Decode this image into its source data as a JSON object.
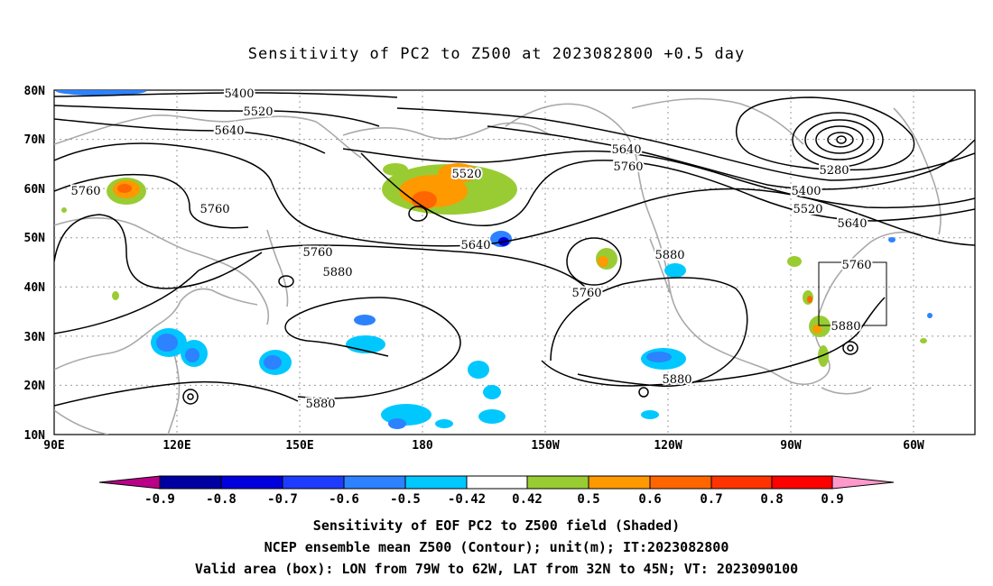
{
  "title": "Sensitivity of PC2 to Z500 at 2023082800 +0.5 day",
  "lat_labels": [
    "80N",
    "70N",
    "60N",
    "50N",
    "40N",
    "30N",
    "20N",
    "10N"
  ],
  "lon_labels": [
    "90E",
    "120E",
    "150E",
    "180",
    "150W",
    "120W",
    "90W",
    "60W"
  ],
  "contour_labels": [
    "5400",
    "5520",
    "5640",
    "5760",
    "5760",
    "5520",
    "5640",
    "5760",
    "5640",
    "5760",
    "5280",
    "5400",
    "5520",
    "5640",
    "5760",
    "5880",
    "5880",
    "5760",
    "5880",
    "5880",
    "5880"
  ],
  "colorbar": {
    "ticks": [
      "-0.9",
      "-0.8",
      "-0.7",
      "-0.6",
      "-0.5",
      "-0.42",
      "0.42",
      "0.5",
      "0.6",
      "0.7",
      "0.8",
      "0.9"
    ],
    "colors": [
      "#bb0088",
      "#0000a0",
      "#0000dc",
      "#1e3cff",
      "#2c82ff",
      "#00c8ff",
      "#ffffff",
      "#99cc33",
      "#ff9900",
      "#ff6600",
      "#ff3300",
      "#ff0000",
      "#ff99cc"
    ]
  },
  "captions": {
    "line1": "Sensitivity of EOF PC2 to Z500 field (Shaded)",
    "line2": "NCEP ensemble mean Z500 (Contour); unit(m); IT:2023082800",
    "line3": "Valid area (box): LON from 79W to 62W, LAT from 32N to 45N; VT: 2023090100"
  }
}
